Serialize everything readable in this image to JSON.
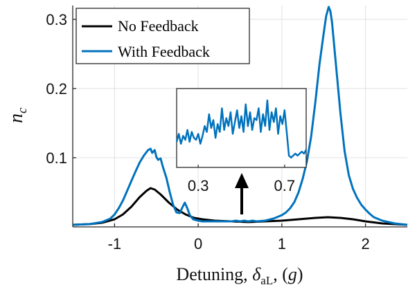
{
  "chart_data": {
    "type": "line",
    "xlabel": {
      "prefix": "Detuning, ",
      "symbol": "δ",
      "subscript": "aL",
      "suffix_open": ", (",
      "unit": "g",
      "suffix_close": ")"
    },
    "ylabel": {
      "symbol": "n",
      "subscript": "c"
    },
    "xlim": [
      -1.5,
      2.5
    ],
    "ylim": [
      0.0,
      0.32
    ],
    "xticks": [
      -1,
      0,
      1,
      2
    ],
    "xtick_labels": [
      "-1",
      "0",
      "1",
      "2"
    ],
    "yticks": [
      0.1,
      0.2,
      0.3
    ],
    "ytick_labels": [
      "0.1",
      "0.2",
      "0.3"
    ],
    "legend_position": "top-left",
    "colors": {
      "no_feedback": "#000000",
      "with_feedback": "#0072bd",
      "axes": "#262626",
      "grid": "#e0e0e0"
    },
    "series": [
      {
        "name": "No Feedback",
        "color": "#000000",
        "x": [
          -1.5,
          -1.3,
          -1.15,
          -1.0,
          -0.9,
          -0.8,
          -0.7,
          -0.62,
          -0.57,
          -0.52,
          -0.45,
          -0.35,
          -0.25,
          -0.15,
          -0.05,
          0.05,
          0.2,
          0.4,
          0.6,
          0.8,
          1.0,
          1.2,
          1.4,
          1.55,
          1.7,
          1.85,
          2.0,
          2.2,
          2.5
        ],
        "y": [
          0.003,
          0.004,
          0.006,
          0.011,
          0.018,
          0.029,
          0.043,
          0.052,
          0.056,
          0.054,
          0.047,
          0.035,
          0.025,
          0.018,
          0.013,
          0.011,
          0.009,
          0.008,
          0.007,
          0.008,
          0.009,
          0.011,
          0.013,
          0.014,
          0.013,
          0.011,
          0.008,
          0.005,
          0.003
        ]
      },
      {
        "name": "With Feedback",
        "color": "#0072bd",
        "x": [
          -1.5,
          -1.3,
          -1.15,
          -1.05,
          -1.0,
          -0.95,
          -0.9,
          -0.85,
          -0.8,
          -0.75,
          -0.7,
          -0.65,
          -0.6,
          -0.57,
          -0.55,
          -0.52,
          -0.5,
          -0.48,
          -0.45,
          -0.42,
          -0.38,
          -0.34,
          -0.3,
          -0.26,
          -0.22,
          -0.19,
          -0.16,
          -0.13,
          -0.1,
          -0.06,
          0.0,
          0.05,
          0.1,
          0.2,
          0.3,
          0.4,
          0.45,
          0.5,
          0.55,
          0.6,
          0.65,
          0.7,
          0.8,
          0.9,
          1.0,
          1.05,
          1.1,
          1.15,
          1.2,
          1.25,
          1.3,
          1.35,
          1.4,
          1.45,
          1.5,
          1.53,
          1.56,
          1.58,
          1.6,
          1.62,
          1.65,
          1.7,
          1.75,
          1.8,
          1.85,
          1.9,
          1.95,
          2.0,
          2.05,
          2.1,
          2.2,
          2.35,
          2.5
        ],
        "y": [
          0.003,
          0.004,
          0.007,
          0.012,
          0.018,
          0.027,
          0.038,
          0.052,
          0.066,
          0.08,
          0.093,
          0.103,
          0.111,
          0.113,
          0.107,
          0.111,
          0.101,
          0.097,
          0.099,
          0.086,
          0.071,
          0.05,
          0.032,
          0.021,
          0.02,
          0.028,
          0.035,
          0.027,
          0.017,
          0.011,
          0.009,
          0.008,
          0.008,
          0.008,
          0.008,
          0.008,
          0.009,
          0.008,
          0.009,
          0.008,
          0.009,
          0.008,
          0.009,
          0.012,
          0.017,
          0.021,
          0.027,
          0.036,
          0.05,
          0.07,
          0.095,
          0.13,
          0.18,
          0.235,
          0.28,
          0.305,
          0.318,
          0.312,
          0.296,
          0.27,
          0.23,
          0.165,
          0.11,
          0.075,
          0.055,
          0.042,
          0.032,
          0.025,
          0.019,
          0.014,
          0.009,
          0.005,
          0.003
        ]
      }
    ],
    "inset": {
      "xlim": [
        0.2,
        0.8
      ],
      "xticks": [
        0.3,
        0.7
      ],
      "xtick_labels": [
        "0.3",
        "0.7"
      ],
      "series_name": "With Feedback",
      "x": [
        0.2,
        0.21,
        0.22,
        0.23,
        0.24,
        0.25,
        0.26,
        0.27,
        0.28,
        0.29,
        0.3,
        0.31,
        0.32,
        0.33,
        0.34,
        0.35,
        0.36,
        0.37,
        0.38,
        0.39,
        0.4,
        0.41,
        0.42,
        0.43,
        0.44,
        0.45,
        0.46,
        0.47,
        0.48,
        0.49,
        0.5,
        0.51,
        0.52,
        0.53,
        0.54,
        0.55,
        0.56,
        0.57,
        0.58,
        0.59,
        0.6,
        0.61,
        0.62,
        0.63,
        0.64,
        0.65,
        0.66,
        0.67,
        0.68,
        0.69,
        0.7,
        0.71,
        0.72,
        0.73,
        0.74,
        0.75,
        0.76,
        0.77,
        0.78,
        0.79,
        0.8
      ],
      "y": [
        0.0078,
        0.0082,
        0.0077,
        0.0081,
        0.0079,
        0.0084,
        0.0078,
        0.0083,
        0.008,
        0.0079,
        0.0082,
        0.0077,
        0.0081,
        0.0086,
        0.0083,
        0.0092,
        0.0085,
        0.0089,
        0.008,
        0.0087,
        0.0083,
        0.0095,
        0.0084,
        0.009,
        0.0086,
        0.0093,
        0.0082,
        0.0088,
        0.0094,
        0.0085,
        0.0091,
        0.0083,
        0.0097,
        0.0086,
        0.0093,
        0.0084,
        0.009,
        0.0089,
        0.0095,
        0.0083,
        0.0092,
        0.0086,
        0.0099,
        0.0084,
        0.0093,
        0.0088,
        0.0095,
        0.0082,
        0.0091,
        0.0087,
        0.0094,
        0.0083,
        0.0071,
        0.007,
        0.0071,
        0.0072,
        0.0071,
        0.0072,
        0.0073,
        0.0072,
        0.0074
      ]
    }
  }
}
